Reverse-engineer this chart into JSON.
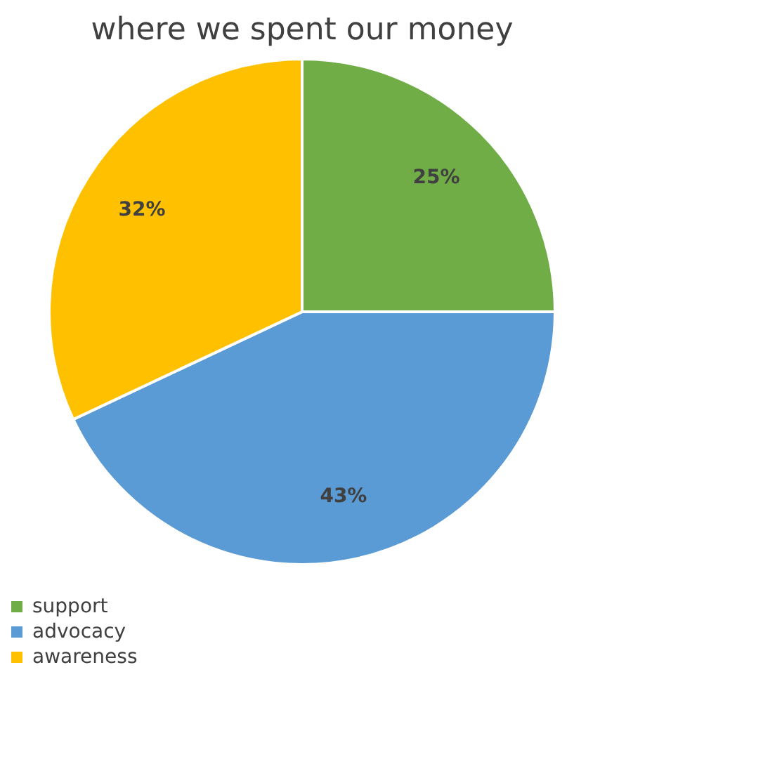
{
  "chart_data": {
    "type": "pie",
    "title": "where we spent our money",
    "categories": [
      "support",
      "advocacy",
      "awareness"
    ],
    "values": [
      25,
      43,
      32
    ],
    "colors": [
      "#70ad47",
      "#5b9bd5",
      "#ffc000"
    ],
    "value_labels": [
      "25%",
      "43%",
      "32%"
    ],
    "legend": "bottom"
  }
}
